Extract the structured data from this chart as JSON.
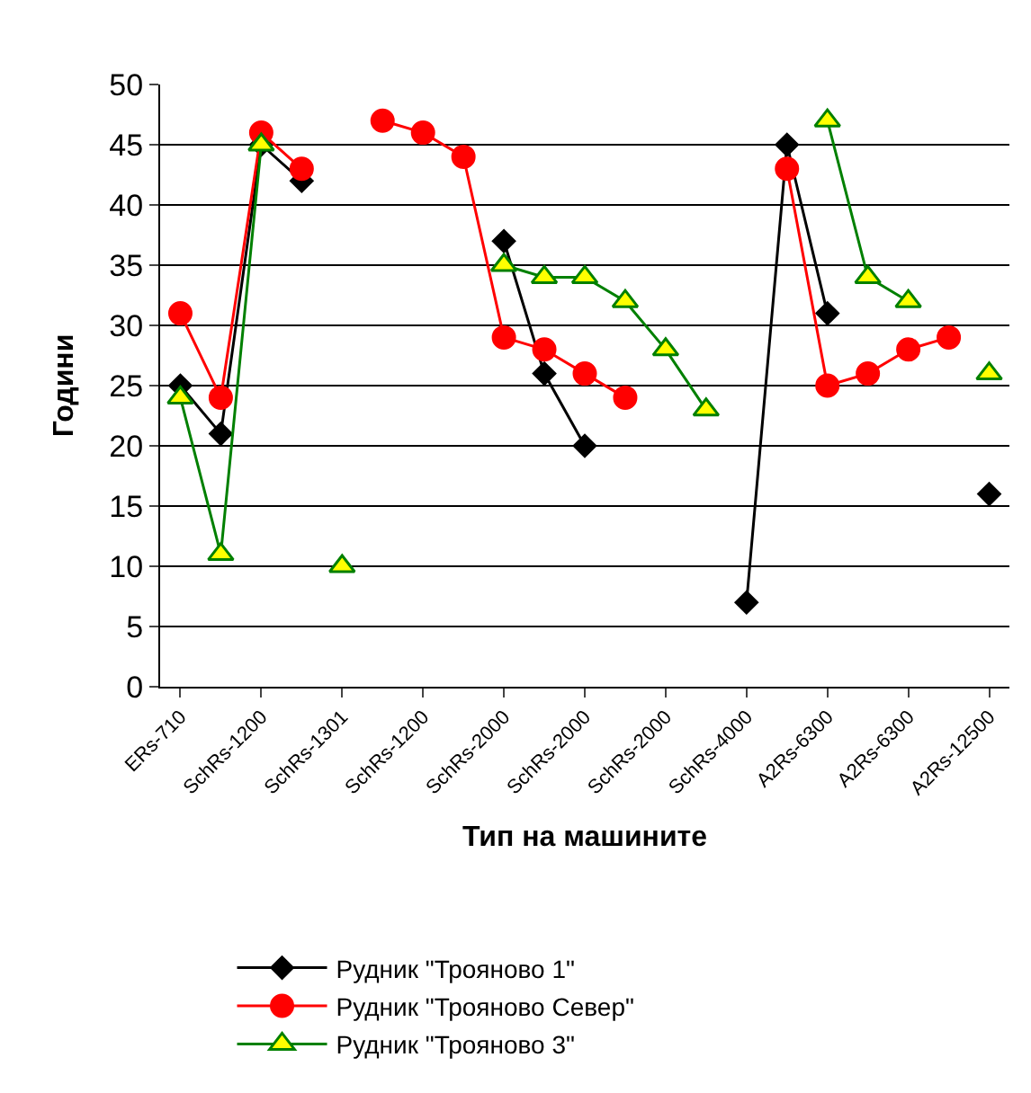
{
  "chart_data": {
    "type": "line",
    "xlabel": "Тип на машините",
    "ylabel": "Години",
    "categories": [
      "ERs-710",
      null,
      "SchRs-1200",
      null,
      "SchRs-1301",
      null,
      "SchRs-1200",
      null,
      "SchRs-2000",
      null,
      "SchRs-2000",
      null,
      "SchRs-2000",
      null,
      "SchRs-4000",
      null,
      "A2Rs-6300",
      null,
      "A2Rs-6300",
      null,
      "A2Rs-12500"
    ],
    "series": [
      {
        "name": "Рудник \"Трояново 1\"",
        "color": "#000000",
        "marker": "diamond",
        "values": [
          25,
          21,
          45,
          42,
          null,
          null,
          null,
          null,
          37,
          26,
          20,
          null,
          null,
          null,
          7,
          45,
          31,
          null,
          null,
          null,
          16
        ]
      },
      {
        "name": "Рудник \"Трояново Север\"",
        "color": "#ff0000",
        "marker": "circle",
        "values": [
          31,
          24,
          46,
          43,
          null,
          47,
          46,
          44,
          29,
          28,
          26,
          24,
          null,
          null,
          null,
          43,
          25,
          26,
          28,
          29,
          null
        ]
      },
      {
        "name": "Рудник \"Трояново 3\"",
        "color": "#008000",
        "marker": "triangle",
        "values": [
          24,
          11,
          45,
          null,
          10,
          null,
          null,
          null,
          35,
          34,
          34,
          32,
          28,
          23,
          null,
          null,
          47,
          34,
          32,
          null,
          26
        ]
      }
    ],
    "ylim": [
      0,
      50
    ],
    "yticks": [
      0,
      5,
      10,
      15,
      20,
      25,
      30,
      35,
      40,
      45,
      50
    ],
    "grid": "y",
    "legend": "bottom",
    "line_style": "solid"
  }
}
